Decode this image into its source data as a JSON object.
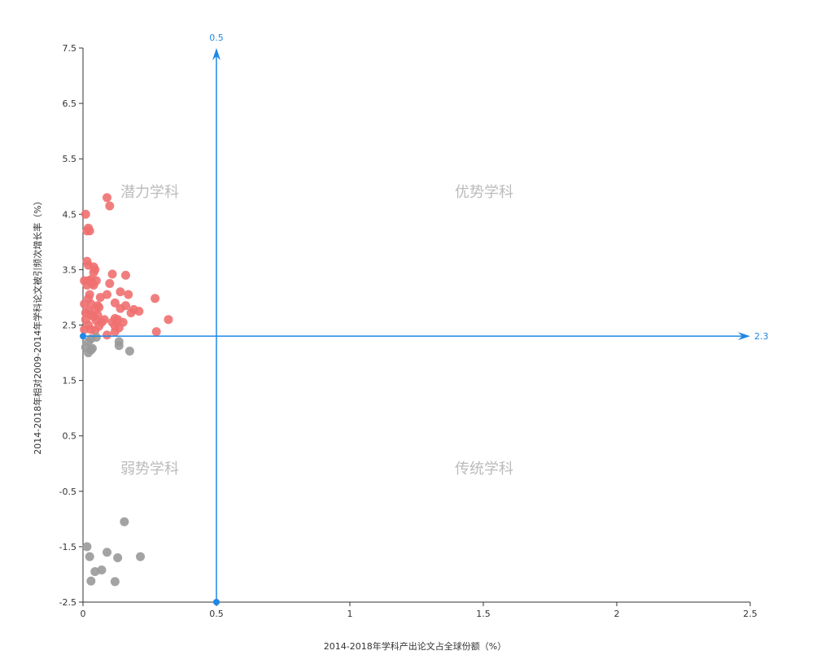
{
  "chart_data": {
    "type": "scatter",
    "xlabel": "2014-2018年学科产出论文占全球份额（%）",
    "ylabel": "2014-2018年相对2009-2014年学科论文被引频次增长率（%）",
    "xlim": [
      0,
      2.5
    ],
    "ylim": [
      -2.5,
      7.5
    ],
    "x_ticks": [
      "0",
      "0.5",
      "1",
      "1.5",
      "2",
      "2.5"
    ],
    "y_ticks": [
      "-2.5",
      "-1.5",
      "-0.5",
      "0.5",
      "1.5",
      "2.5",
      "3.5",
      "4.5",
      "5.5",
      "6.5",
      "7.5"
    ],
    "grid": false,
    "reference_lines": {
      "x": {
        "value": 0.5,
        "label": "0.5"
      },
      "y": {
        "value": 2.3,
        "label": "2.3"
      }
    },
    "quadrants": {
      "top_left": "潜力学科",
      "top_right": "优势学科",
      "bottom_left": "弱势学科",
      "bottom_right": "传统学科"
    },
    "colors": {
      "above": "#f07070",
      "below": "#999999",
      "reference": "#1e88e5",
      "axis": "#333333"
    },
    "series": [
      {
        "group": "above",
        "points": [
          [
            0.09,
            4.8
          ],
          [
            0.1,
            4.65
          ],
          [
            0.01,
            4.5
          ],
          [
            0.02,
            4.25
          ],
          [
            0.015,
            4.2
          ],
          [
            0.025,
            4.2
          ],
          [
            0.015,
            3.65
          ],
          [
            0.02,
            3.58
          ],
          [
            0.04,
            3.55
          ],
          [
            0.045,
            3.5
          ],
          [
            0.04,
            3.45
          ],
          [
            0.11,
            3.42
          ],
          [
            0.16,
            3.4
          ],
          [
            0.02,
            3.3
          ],
          [
            0.03,
            3.32
          ],
          [
            0.05,
            3.3
          ],
          [
            0.005,
            3.3
          ],
          [
            0.015,
            3.22
          ],
          [
            0.035,
            3.25
          ],
          [
            0.04,
            3.22
          ],
          [
            0.1,
            3.25
          ],
          [
            0.14,
            3.1
          ],
          [
            0.17,
            3.05
          ],
          [
            0.09,
            3.05
          ],
          [
            0.025,
            3.05
          ],
          [
            0.02,
            2.98
          ],
          [
            0.065,
            3.0
          ],
          [
            0.27,
            2.98
          ],
          [
            0.005,
            2.88
          ],
          [
            0.03,
            2.88
          ],
          [
            0.055,
            2.85
          ],
          [
            0.06,
            2.82
          ],
          [
            0.12,
            2.9
          ],
          [
            0.16,
            2.85
          ],
          [
            0.14,
            2.8
          ],
          [
            0.19,
            2.78
          ],
          [
            0.21,
            2.75
          ],
          [
            0.18,
            2.72
          ],
          [
            0.045,
            2.78
          ],
          [
            0.02,
            2.75
          ],
          [
            0.01,
            2.72
          ],
          [
            0.03,
            2.68
          ],
          [
            0.055,
            2.68
          ],
          [
            0.04,
            2.65
          ],
          [
            0.08,
            2.6
          ],
          [
            0.12,
            2.62
          ],
          [
            0.13,
            2.6
          ],
          [
            0.01,
            2.6
          ],
          [
            0.05,
            2.58
          ],
          [
            0.07,
            2.55
          ],
          [
            0.11,
            2.55
          ],
          [
            0.15,
            2.55
          ],
          [
            0.32,
            2.6
          ],
          [
            0.02,
            2.5
          ],
          [
            0.06,
            2.48
          ],
          [
            0.12,
            2.48
          ],
          [
            0.135,
            2.45
          ],
          [
            0.005,
            2.42
          ],
          [
            0.03,
            2.42
          ],
          [
            0.045,
            2.4
          ],
          [
            0.275,
            2.38
          ],
          [
            0.12,
            2.38
          ],
          [
            0.09,
            2.32
          ]
        ]
      },
      {
        "group": "below",
        "points": [
          [
            0.05,
            2.28
          ],
          [
            0.03,
            2.25
          ],
          [
            0.02,
            2.2
          ],
          [
            0.135,
            2.2
          ],
          [
            0.135,
            2.13
          ],
          [
            0.01,
            2.1
          ],
          [
            0.035,
            2.08
          ],
          [
            0.03,
            2.05
          ],
          [
            0.175,
            2.03
          ],
          [
            0.02,
            2.0
          ],
          [
            0.155,
            -1.05
          ],
          [
            0.015,
            -1.5
          ],
          [
            0.09,
            -1.6
          ],
          [
            0.025,
            -1.68
          ],
          [
            0.13,
            -1.7
          ],
          [
            0.215,
            -1.68
          ],
          [
            0.045,
            -1.95
          ],
          [
            0.07,
            -1.92
          ],
          [
            0.03,
            -2.12
          ],
          [
            0.12,
            -2.13
          ]
        ]
      }
    ]
  }
}
